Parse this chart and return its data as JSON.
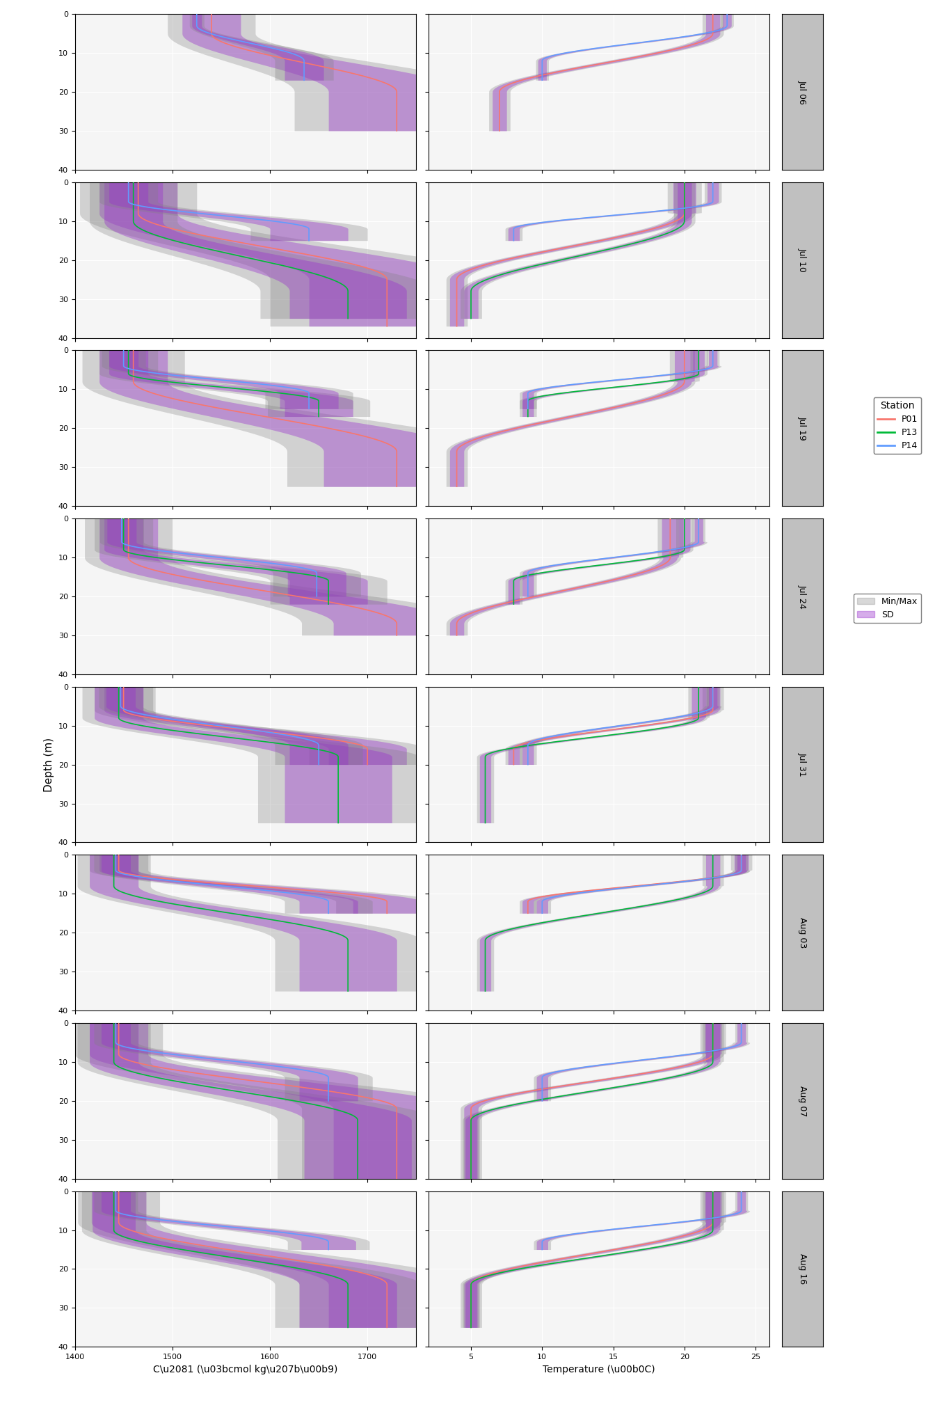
{
  "cruise_days": [
    "Jul 06",
    "Jul 10",
    "Jul 19",
    "Jul 24",
    "Jul 31",
    "Aug 03",
    "Aug 07",
    "Aug 16"
  ],
  "stations": [
    "P01",
    "P13",
    "P14"
  ],
  "station_colors": {
    "P01": "#F8766D",
    "P13": "#00BA38",
    "P14": "#619CFF"
  },
  "sd_color": "#9932CC",
  "sd_alpha": 0.4,
  "minmax_color": "#808080",
  "minmax_alpha": 0.3,
  "ct_xlim": [
    1400,
    1750
  ],
  "temp_xlim": [
    2,
    26
  ],
  "ylim": [
    40,
    0
  ],
  "depth_ticks": [
    0,
    10,
    20,
    30,
    40
  ],
  "ct_xticks": [
    1400,
    1500,
    1600,
    1700
  ],
  "temp_xticks": [
    5,
    10,
    15,
    20,
    25
  ],
  "ylabel": "Depth (m)",
  "ct_xlabel": "C\\u2081 (\\u03bcmol kg\\u207b\\u00b9)",
  "temp_xlabel": "Temperature (\\u00b0C)",
  "background_color": "#EAEAEA",
  "panel_background": "#F5F5F5",
  "grid_color": "white",
  "title_strip_color": "#C0C0C0",
  "figsize": [
    13.44,
    20.16
  ],
  "dpi": 100
}
